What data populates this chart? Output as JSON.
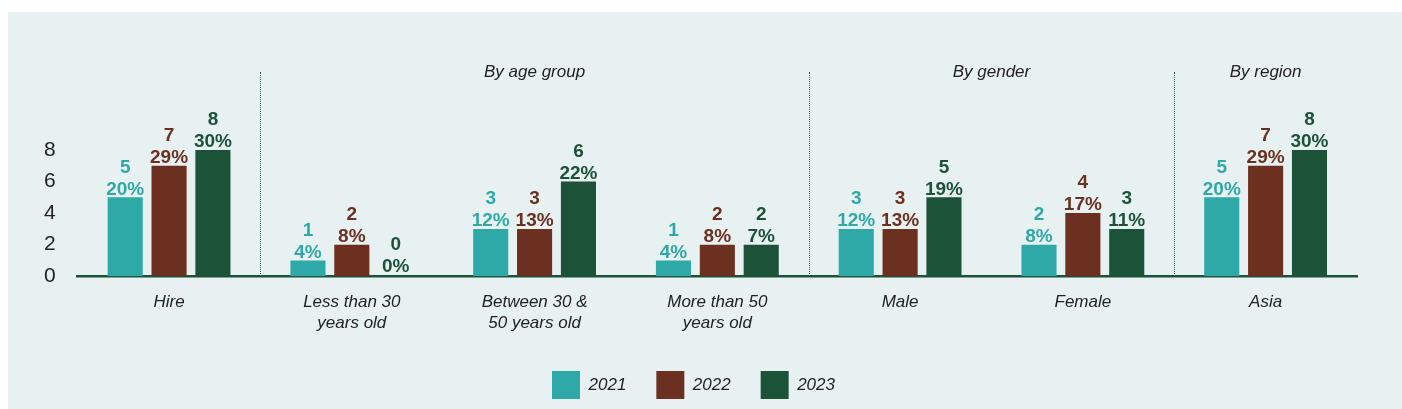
{
  "chart_data": {
    "type": "bar",
    "categories": [
      "Hire",
      "Less than 30 years old",
      "Between 30 & 50 years old",
      "More than 50 years old",
      "Male",
      "Female",
      "Asia"
    ],
    "series": [
      {
        "name": "2021",
        "color": "#2fa8a8",
        "values": [
          5,
          1,
          3,
          1,
          3,
          2,
          5
        ],
        "value_labels": [
          "5\n20%",
          "1\n4%",
          "3\n12%",
          "1\n4%",
          "3\n12%",
          "2\n8%",
          "5\n20%"
        ]
      },
      {
        "name": "2022",
        "color": "#6b3020",
        "values": [
          7,
          2,
          3,
          2,
          3,
          4,
          7
        ],
        "value_labels": [
          "7\n29%",
          "2\n8%",
          "3\n13%",
          "2\n8%",
          "3\n13%",
          "4\n17%",
          "7\n29%"
        ]
      },
      {
        "name": "2023",
        "color": "#1b5238",
        "values": [
          8,
          0,
          6,
          2,
          5,
          3,
          8
        ],
        "value_labels": [
          "8\n30%",
          "0\n0%",
          "6\n22%",
          "2\n7%",
          "5\n19%",
          "3\n11%",
          "8\n30%"
        ]
      }
    ],
    "annotations": [
      "By age group",
      "By gender",
      "By region"
    ],
    "ylim": [
      0,
      8
    ],
    "yticks": [
      0,
      2,
      4,
      6,
      8
    ],
    "grid": false,
    "legend": "bottom"
  }
}
